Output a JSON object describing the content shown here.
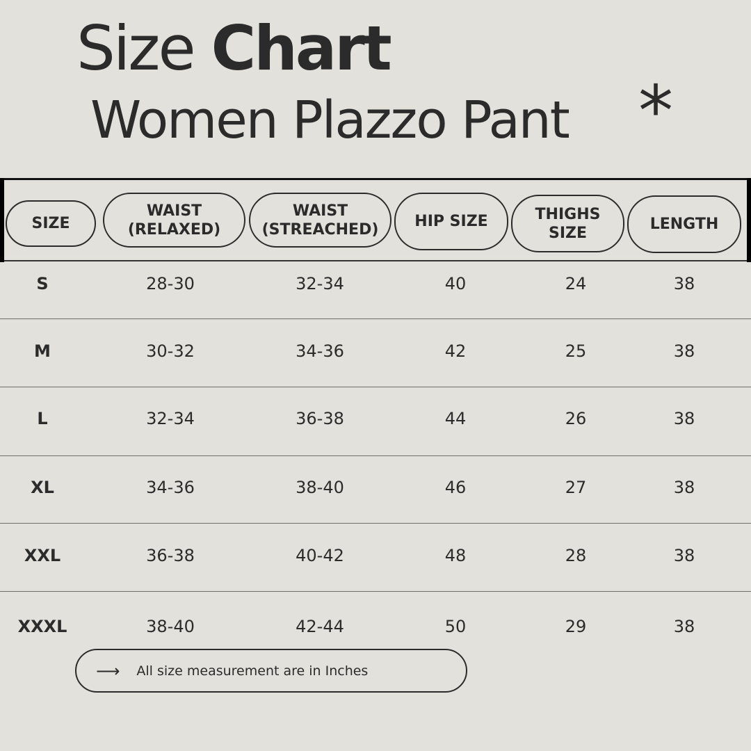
{
  "title": {
    "regular": "Size",
    "bold": "Chart",
    "subtitle": "Women Plazzo Pant",
    "decoration": "*"
  },
  "headers": [
    "SIZE",
    "WAIST\n(RELAXED)",
    "WAIST\n(STREACHED)",
    "HIP SIZE",
    "THIGHS\nSIZE",
    "LENGTH"
  ],
  "rows": [
    [
      "S",
      "28-30",
      "32-34",
      "40",
      "24",
      "38"
    ],
    [
      "M",
      "30-32",
      "34-36",
      "42",
      "25",
      "38"
    ],
    [
      "L",
      "32-34",
      "36-38",
      "44",
      "26",
      "38"
    ],
    [
      "XL",
      "34-36",
      "38-40",
      "46",
      "27",
      "38"
    ],
    [
      "XXL",
      "36-38",
      "40-42",
      "48",
      "28",
      "38"
    ],
    [
      "XXXL",
      "38-40",
      "42-44",
      "50",
      "29",
      "38"
    ]
  ],
  "note": {
    "icon": "arrow-right-icon",
    "arrow": "⟶",
    "text": "All size measurement are in Inches"
  },
  "colors": {
    "background": "#e2e1dc",
    "text": "#2b2b2b"
  }
}
